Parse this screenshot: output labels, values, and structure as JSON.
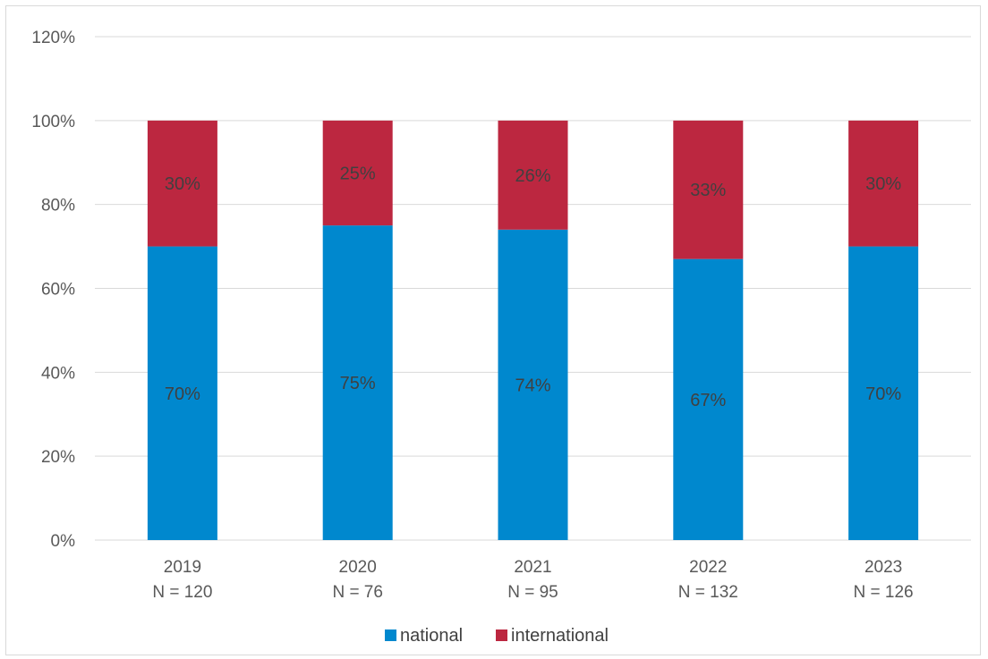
{
  "chart_data": {
    "type": "bar",
    "stacked": true,
    "categories": [
      "2019",
      "2020",
      "2021",
      "2022",
      "2023"
    ],
    "category_sublabels": [
      "N = 120",
      "N = 76",
      "N = 95",
      "N = 132",
      "N = 126"
    ],
    "series": [
      {
        "name": "national",
        "color": "#0088CE",
        "values": [
          70,
          75,
          74,
          67,
          70
        ],
        "labels": [
          "70%",
          "75%",
          "74%",
          "67%",
          "70%"
        ]
      },
      {
        "name": "international",
        "color": "#BC2740",
        "values": [
          30,
          25,
          26,
          33,
          30
        ],
        "labels": [
          "30%",
          "25%",
          "26%",
          "33%",
          "30%"
        ]
      }
    ],
    "ylim": [
      0,
      120
    ],
    "yticks": [
      "0%",
      "20%",
      "40%",
      "60%",
      "80%",
      "100%",
      "120%"
    ],
    "grid": true,
    "legend": "bottom"
  }
}
